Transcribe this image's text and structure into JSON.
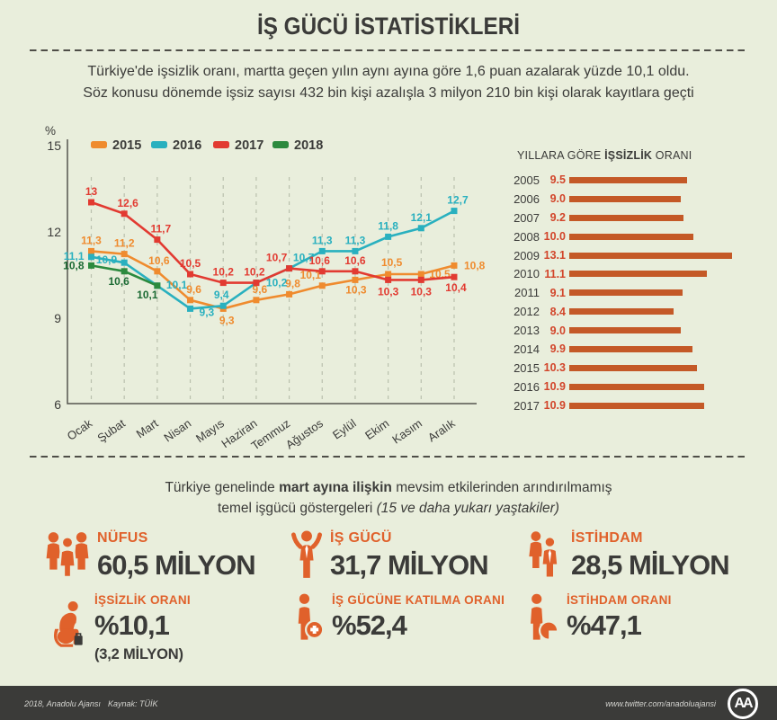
{
  "title": "İŞ GÜCÜ İSTATİSTİKLERİ",
  "subtitle": {
    "line1": "Türkiye'de işsizlik oranı, martta geçen yılın aynı ayına göre 1,6 puan azalarak yüzde 10,1 oldu.",
    "line2": "Söz konusu dönemde işsiz sayısı 432 bin kişi azalışla 3 milyon 210 bin kişi olarak kayıtlara geçti"
  },
  "chart_data": [
    {
      "type": "line",
      "title": "",
      "ylabel": "%",
      "ylim": [
        6,
        15
      ],
      "yticks": [
        15,
        12,
        9,
        6
      ],
      "grid": "vertical-dashed",
      "legend_position": "top",
      "categories": [
        "Ocak",
        "Şubat",
        "Mart",
        "Nisan",
        "Mayıs",
        "Haziran",
        "Temmuz",
        "Ağustos",
        "Eylül",
        "Ekim",
        "Kasım",
        "Aralık"
      ],
      "series": [
        {
          "name": "2015",
          "color": "#ef8b2e",
          "values": [
            11.3,
            11.2,
            10.6,
            9.6,
            9.3,
            9.6,
            9.8,
            10.1,
            10.3,
            10.5,
            10.5,
            10.8
          ],
          "label_pos": [
            [
              0,
              -8,
              "m"
            ],
            [
              0,
              -8,
              "m"
            ],
            [
              2,
              -8,
              "m"
            ],
            [
              4,
              -8,
              "m"
            ],
            [
              4,
              17,
              "m"
            ],
            [
              4,
              -8,
              "m"
            ],
            [
              4,
              -8,
              "m"
            ],
            [
              -13,
              -8,
              "m"
            ],
            [
              1,
              15,
              "m"
            ],
            [
              4,
              -9,
              "m"
            ],
            [
              9,
              4,
              "s"
            ],
            [
              11,
              4,
              "s"
            ]
          ]
        },
        {
          "name": "2016",
          "color": "#29b0bf",
          "values": [
            11.1,
            10.9,
            10.1,
            9.3,
            9.4,
            10.2,
            10.7,
            11.3,
            11.3,
            11.8,
            12.1,
            12.7
          ],
          "label_pos": [
            [
              -8,
              3,
              "e"
            ],
            [
              -8,
              1,
              "e"
            ],
            [
              10,
              3,
              "s"
            ],
            [
              10,
              8,
              "s"
            ],
            [
              -2,
              -8,
              "m"
            ],
            [
              11,
              4,
              "s"
            ],
            [
              16,
              -8,
              "m"
            ],
            [
              0,
              -8,
              "m"
            ],
            [
              0,
              -8,
              "m"
            ],
            [
              0,
              -8,
              "m"
            ],
            [
              0,
              -8,
              "m"
            ],
            [
              4,
              -8,
              "m"
            ]
          ]
        },
        {
          "name": "2017",
          "color": "#e23a31",
          "values": [
            13,
            12.6,
            11.7,
            10.5,
            10.2,
            10.2,
            10.7,
            10.6,
            10.6,
            10.3,
            10.3,
            10.4
          ],
          "label_pos": [
            [
              0,
              -8,
              "m"
            ],
            [
              4,
              -8,
              "m"
            ],
            [
              4,
              -8,
              "m"
            ],
            [
              0,
              -8,
              "m"
            ],
            [
              0,
              -8,
              "m"
            ],
            [
              -2,
              -8,
              "m"
            ],
            [
              -14,
              -8,
              "m"
            ],
            [
              -3,
              -8,
              "m"
            ],
            [
              0,
              -8,
              "m"
            ],
            [
              0,
              17,
              "m"
            ],
            [
              0,
              17,
              "m"
            ],
            [
              2,
              16,
              "m"
            ]
          ]
        },
        {
          "name": "2018",
          "color": "#2c8a3e",
          "label_color": "#1b6a33",
          "values": [
            10.8,
            10.6,
            10.1,
            null,
            null,
            null,
            null,
            null,
            null,
            null,
            null,
            null
          ],
          "label_pos": [
            [
              -8,
              4,
              "e"
            ],
            [
              -6,
              15,
              "m"
            ],
            [
              -11,
              14,
              "m"
            ]
          ]
        }
      ]
    },
    {
      "type": "bar",
      "title_normal1": "YILLARA GÖRE",
      "title_bold": "İŞSİZLİK",
      "title_normal2": "ORANI",
      "categories": [
        "2005",
        "2006",
        "2007",
        "2008",
        "2009",
        "2010",
        "2011",
        "2012",
        "2013",
        "2014",
        "2015",
        "2016",
        "2017"
      ],
      "values": [
        9.5,
        9.0,
        9.2,
        10.0,
        13.1,
        11.1,
        9.1,
        8.4,
        9.0,
        9.9,
        10.3,
        10.9,
        10.9
      ],
      "bar_color": "#c45927",
      "value_color": "#d2452a"
    }
  ],
  "midtext": {
    "line1": [
      {
        "t": "Türkiye genelinde ",
        "b": 0,
        "i": 0
      },
      {
        "t": "mart ayına ilişkin",
        "b": 1,
        "i": 0
      },
      {
        "t": " mevsim etkilerinden arındırılmamış",
        "b": 0,
        "i": 0
      }
    ],
    "line2": [
      {
        "t": "temel işgücü göstergeleri ",
        "b": 0,
        "i": 0
      },
      {
        "t": "(15 ve daha yukarı yaştakiler)",
        "b": 0,
        "i": 1
      }
    ]
  },
  "stats": [
    {
      "icon": "population-icon",
      "label": "NÜFUS",
      "value": "60,5 MİLYON",
      "note": "",
      "row": 1,
      "col": 1
    },
    {
      "icon": "workforce-icon",
      "label": "İŞ GÜCÜ",
      "value": "31,7 MİLYON",
      "note": "",
      "row": 1,
      "col": 2
    },
    {
      "icon": "employment-icon",
      "label": "İSTİHDAM",
      "value": "28,5 MİLYON",
      "note": "",
      "row": 1,
      "col": 3
    },
    {
      "icon": "unemployed-icon",
      "label": "İŞSİZLİK ORANI",
      "value": "%10,1",
      "note": "(3,2 MİLYON)",
      "row": 2,
      "col": 1
    },
    {
      "icon": "participation-icon",
      "label": "İŞ GÜCÜNE KATILMA ORANI",
      "value": "%52,4",
      "note": "",
      "row": 2,
      "col": 2
    },
    {
      "icon": "employment-rate-icon",
      "label": "İSTİHDAM ORANI",
      "value": "%47,1",
      "note": "",
      "row": 2,
      "col": 3
    }
  ],
  "footer": {
    "credit": "2018, Anadolu Ajansı",
    "source": "Kaynak: TÜİK",
    "twitter": "www.twitter.com/anadoluajansi",
    "logo": "AA"
  },
  "colors": {
    "background": "#e9eedc",
    "dark": "#3b3b39",
    "accent_orange": "#e0612b"
  }
}
